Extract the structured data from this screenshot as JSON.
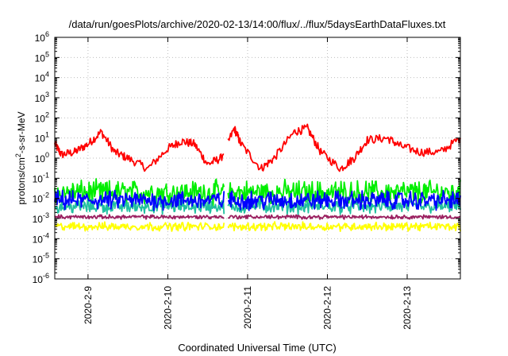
{
  "chart_data": {
    "type": "line",
    "title": "/data/run/goesPlots/archive/2020-02-13/14:00/flux/../flux/5daysEarthDataFluxes.txt",
    "xlabel": "Coordinated Universal Time (UTC)",
    "ylabel": {
      "main": "protons/cm",
      "sup": "2",
      "rest": "-s-sr-MeV"
    },
    "y_scale": "log",
    "ylim": [
      1e-06,
      1000000.0
    ],
    "y_ticks": [
      {
        "value": 1e-06,
        "base": "10",
        "exp": "-6"
      },
      {
        "value": 1e-05,
        "base": "10",
        "exp": "-5"
      },
      {
        "value": 0.0001,
        "base": "10",
        "exp": "-4"
      },
      {
        "value": 0.001,
        "base": "10",
        "exp": "-3"
      },
      {
        "value": 0.01,
        "base": "10",
        "exp": "-2"
      },
      {
        "value": 0.1,
        "base": "10",
        "exp": "-1"
      },
      {
        "value": 1,
        "base": "10",
        "exp": "0"
      },
      {
        "value": 10.0,
        "base": "10",
        "exp": "1"
      },
      {
        "value": 100.0,
        "base": "10",
        "exp": "2"
      },
      {
        "value": 1000.0,
        "base": "10",
        "exp": "3"
      },
      {
        "value": 10000.0,
        "base": "10",
        "exp": "4"
      },
      {
        "value": 100000.0,
        "base": "10",
        "exp": "5"
      },
      {
        "value": 1000000.0,
        "base": "10",
        "exp": "6"
      }
    ],
    "xlim": [
      "2020-02-08 14:00",
      "2020-02-13 16:00"
    ],
    "x_ticks": [
      {
        "label": "2020-2-9",
        "date": "2020-02-09 00:00"
      },
      {
        "label": "2020-2-10",
        "date": "2020-02-10 00:00"
      },
      {
        "label": "2020-2-11",
        "date": "2020-02-11 00:00"
      },
      {
        "label": "2020-2-12",
        "date": "2020-02-12 00:00"
      },
      {
        "label": "2020-2-13",
        "date": "2020-02-13 00:00"
      }
    ],
    "grid": true,
    "data_gap": [
      "2020-02-10 17:00",
      "2020-02-10 18:00"
    ],
    "series": [
      {
        "color": "#ff0000",
        "noise": 0.07,
        "points": [
          [
            "2020-02-08 14:00",
            5
          ],
          [
            "2020-02-08 16:00",
            1.5
          ],
          [
            "2020-02-08 20:00",
            2
          ],
          [
            "2020-02-09 00:00",
            5
          ],
          [
            "2020-02-09 04:00",
            20
          ],
          [
            "2020-02-09 08:00",
            2
          ],
          [
            "2020-02-09 12:00",
            1
          ],
          [
            "2020-02-09 18:00",
            0.3
          ],
          [
            "2020-02-10 00:00",
            3
          ],
          [
            "2020-02-10 04:00",
            7
          ],
          [
            "2020-02-10 08:00",
            5
          ],
          [
            "2020-02-10 12:00",
            0.5
          ],
          [
            "2020-02-10 16:00",
            1
          ],
          [
            "2020-02-10 20:00",
            30
          ],
          [
            "2020-02-10 22:00",
            5
          ],
          [
            "2020-02-11 04:00",
            0.3
          ],
          [
            "2020-02-11 08:00",
            1
          ],
          [
            "2020-02-11 14:00",
            20
          ],
          [
            "2020-02-11 18:00",
            30
          ],
          [
            "2020-02-11 22:00",
            2
          ],
          [
            "2020-02-12 04:00",
            0.3
          ],
          [
            "2020-02-12 08:00",
            1
          ],
          [
            "2020-02-12 12:00",
            8
          ],
          [
            "2020-02-12 18:00",
            10
          ],
          [
            "2020-02-12 22:00",
            4
          ],
          [
            "2020-02-13 04:00",
            2
          ],
          [
            "2020-02-13 10:00",
            2
          ],
          [
            "2020-02-13 16:00",
            10
          ]
        ]
      },
      {
        "color": "#00ee00",
        "level": 0.02,
        "spread": 0.45,
        "noise": 0.5,
        "n": 520
      },
      {
        "color": "#20c0a0",
        "level": 0.004,
        "spread": 0.25,
        "noise": 0.35,
        "n": 520
      },
      {
        "color": "#0000ff",
        "level": 0.008,
        "spread": 0.35,
        "noise": 0.4,
        "n": 520
      },
      {
        "color": "#ffff00",
        "level": 0.0004,
        "spread": 0.15,
        "noise": 0.2,
        "n": 520
      },
      {
        "color": "#9b2060",
        "level": 0.0012,
        "spread": 0.06,
        "noise": 0.12,
        "n": 520
      }
    ]
  }
}
